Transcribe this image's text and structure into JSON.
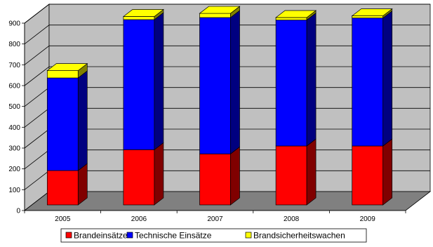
{
  "chart_data": {
    "type": "bar",
    "stacked": true,
    "three_d": true,
    "categories": [
      "2005",
      "2006",
      "2007",
      "2008",
      "2009"
    ],
    "series": [
      {
        "name": "Brandeinsätze",
        "color": "#FF0000",
        "side_color": "#800000",
        "values": [
          165,
          265,
          245,
          283,
          283
        ]
      },
      {
        "name": "Technische Einsätze",
        "color": "#0000FF",
        "side_color": "#000080",
        "values": [
          445,
          625,
          655,
          605,
          615
        ]
      },
      {
        "name": "Brandsicherheitswachen",
        "color": "#FFFF00",
        "side_color": "#808000",
        "values": [
          35,
          15,
          20,
          12,
          10
        ]
      }
    ],
    "y_ticks": [
      "0",
      "100",
      "200",
      "300",
      "400",
      "500",
      "600",
      "700",
      "800",
      "900"
    ],
    "ylim": [
      0,
      900
    ],
    "grid": true,
    "legend_position": "bottom",
    "wall_color": "#C0C0C0",
    "floor_color": "#808080"
  }
}
